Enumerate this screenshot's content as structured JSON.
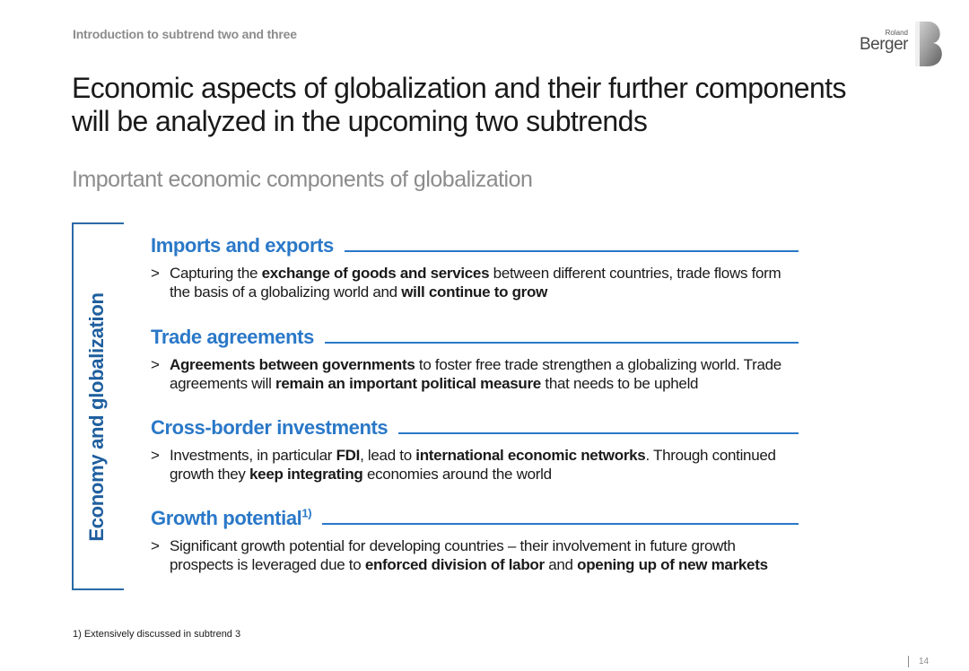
{
  "header": {
    "breadcrumb": "Introduction to subtrend two and three",
    "logo": {
      "small_text": "Roland",
      "large_text": "Berger",
      "icon": "roland-berger-b-logo"
    }
  },
  "title": {
    "line1": "Economic aspects of globalization and their further components",
    "line2": "will be analyzed in the upcoming two subtrends"
  },
  "subtitle": "Important economic components of globalization",
  "bracket_label": "Economy and globalization",
  "colors": {
    "accent": "#2a78c8",
    "bracket": "#1f5f9e",
    "grey": "#8c8c8c"
  },
  "sections": [
    {
      "title": "Imports and exports",
      "superscript": "",
      "bullet": ">",
      "body": [
        {
          "text": "Capturing the ",
          "bold": false
        },
        {
          "text": "exchange of goods and services",
          "bold": true
        },
        {
          "text": " between different countries, trade flows form the basis of a globalizing world and ",
          "bold": false
        },
        {
          "text": "will continue to grow",
          "bold": true
        }
      ]
    },
    {
      "title": "Trade agreements",
      "superscript": "",
      "bullet": ">",
      "body": [
        {
          "text": "Agreements between governments",
          "bold": true
        },
        {
          "text": " to foster free trade strengthen a globalizing world. Trade agreements will ",
          "bold": false
        },
        {
          "text": "remain an important political measure",
          "bold": true
        },
        {
          "text": " that needs to be upheld",
          "bold": false
        }
      ]
    },
    {
      "title": "Cross-border investments",
      "superscript": "",
      "bullet": ">",
      "body": [
        {
          "text": "Investments, in particular ",
          "bold": false
        },
        {
          "text": "FDI",
          "bold": true
        },
        {
          "text": ", lead to ",
          "bold": false
        },
        {
          "text": "international economic networks",
          "bold": true
        },
        {
          "text": ". Through continued growth they ",
          "bold": false
        },
        {
          "text": "keep integrating",
          "bold": true
        },
        {
          "text": " economies around the world",
          "bold": false
        }
      ]
    },
    {
      "title": "Growth potential",
      "superscript": "1)",
      "bullet": ">",
      "body": [
        {
          "text": "Significant growth potential for developing countries – their involvement in future growth prospects is leveraged due to ",
          "bold": false
        },
        {
          "text": "enforced division of labor",
          "bold": true
        },
        {
          "text": " and ",
          "bold": false
        },
        {
          "text": "opening up of new markets",
          "bold": true
        }
      ]
    }
  ],
  "footnote": "1) Extensively discussed in subtrend 3",
  "page_number": "14"
}
